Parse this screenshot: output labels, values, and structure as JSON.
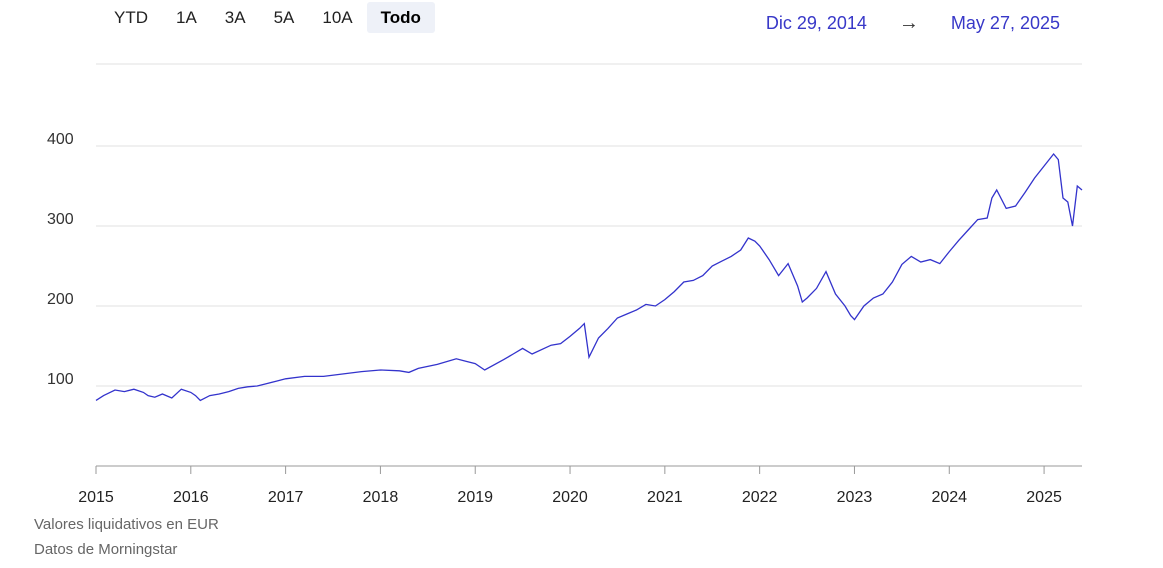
{
  "tabs": [
    {
      "label": "YTD",
      "active": false
    },
    {
      "label": "1A",
      "active": false
    },
    {
      "label": "3A",
      "active": false
    },
    {
      "label": "5A",
      "active": false
    },
    {
      "label": "10A",
      "active": false
    },
    {
      "label": "Todo",
      "active": true
    }
  ],
  "date_range": {
    "start": "Dic 29, 2014",
    "arrow": "→",
    "end": "May 27, 2025"
  },
  "footer": {
    "currency_note": "Valores liquidativos en EUR",
    "source_note": "Datos de Morningstar"
  },
  "colors": {
    "line": "#3333cc",
    "grid": "#e2e2e2",
    "axis": "#999999",
    "date_text": "#3838c8"
  },
  "chart_data": {
    "type": "line",
    "title": "",
    "xlabel": "",
    "ylabel": "",
    "xlim": [
      2015.0,
      2025.4
    ],
    "ylim": [
      0,
      400
    ],
    "yticks": [
      100,
      200,
      300,
      400
    ],
    "xticks": [
      2015,
      2016,
      2017,
      2018,
      2019,
      2020,
      2021,
      2022,
      2023,
      2024,
      2025
    ],
    "xtick_labels": [
      "2015",
      "2016",
      "2017",
      "2018",
      "2019",
      "2020",
      "2021",
      "2022",
      "2023",
      "2024",
      "2025"
    ],
    "grid": true,
    "legend": "none",
    "series": [
      {
        "x": [
          2015.0,
          2015.08,
          2015.2,
          2015.3,
          2015.4,
          2015.5,
          2015.55,
          2015.62,
          2015.7,
          2015.8,
          2015.9,
          2016.0,
          2016.05,
          2016.1,
          2016.2,
          2016.3,
          2016.4,
          2016.5,
          2016.6,
          2016.7,
          2016.8,
          2016.9,
          2017.0,
          2017.2,
          2017.4,
          2017.6,
          2017.8,
          2018.0,
          2018.2,
          2018.3,
          2018.4,
          2018.6,
          2018.8,
          2018.9,
          2019.0,
          2019.1,
          2019.3,
          2019.4,
          2019.5,
          2019.6,
          2019.8,
          2019.9,
          2020.0,
          2020.1,
          2020.15,
          2020.2,
          2020.3,
          2020.4,
          2020.5,
          2020.6,
          2020.7,
          2020.8,
          2020.9,
          2021.0,
          2021.1,
          2021.2,
          2021.3,
          2021.4,
          2021.5,
          2021.6,
          2021.7,
          2021.8,
          2021.88,
          2021.95,
          2022.0,
          2022.1,
          2022.2,
          2022.3,
          2022.4,
          2022.45,
          2022.5,
          2022.6,
          2022.7,
          2022.8,
          2022.9,
          2022.96,
          2023.0,
          2023.1,
          2023.2,
          2023.3,
          2023.4,
          2023.5,
          2023.6,
          2023.7,
          2023.8,
          2023.9,
          2024.0,
          2024.1,
          2024.2,
          2024.3,
          2024.4,
          2024.45,
          2024.5,
          2024.6,
          2024.7,
          2024.8,
          2024.9,
          2025.0,
          2025.1,
          2025.15,
          2025.2,
          2025.25,
          2025.3,
          2025.35,
          2025.4
        ],
        "y": [
          82,
          88,
          95,
          93,
          96,
          92,
          88,
          86,
          90,
          85,
          96,
          92,
          88,
          82,
          88,
          90,
          93,
          97,
          99,
          100,
          103,
          106,
          109,
          112,
          112,
          115,
          118,
          120,
          119,
          117,
          122,
          127,
          134,
          131,
          128,
          120,
          133,
          140,
          147,
          140,
          151,
          153,
          162,
          172,
          178,
          136,
          160,
          172,
          185,
          190,
          195,
          202,
          200,
          208,
          218,
          230,
          232,
          238,
          250,
          256,
          262,
          270,
          285,
          281,
          275,
          258,
          238,
          253,
          225,
          205,
          210,
          222,
          243,
          215,
          200,
          188,
          183,
          200,
          210,
          215,
          230,
          252,
          262,
          255,
          258,
          253,
          268,
          282,
          295,
          308,
          310,
          335,
          345,
          322,
          325,
          342,
          360,
          375,
          390,
          383,
          335,
          330,
          300,
          350,
          345
        ]
      }
    ]
  }
}
